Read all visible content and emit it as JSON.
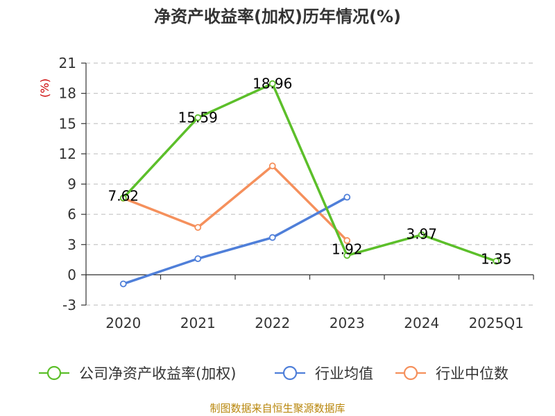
{
  "title": "净资产收益率(加权)历年情况(%)",
  "source": "制图数据来自恒生聚源数据库",
  "chart_data": {
    "type": "line",
    "categories": [
      "2020",
      "2021",
      "2022",
      "2023",
      "2024",
      "2025Q1"
    ],
    "ylabel": "(%)",
    "ylim": [
      -3,
      21
    ],
    "yticks": [
      -3,
      0,
      3,
      6,
      9,
      12,
      15,
      18,
      21
    ],
    "grid": true,
    "legend_position": "bottom",
    "series": [
      {
        "name": "公司净资产收益率(加权)",
        "color": "#5cbf2a",
        "values": [
          7.62,
          15.59,
          18.96,
          1.92,
          3.97,
          1.35
        ],
        "labels": [
          "7.62",
          "15.59",
          "18.96",
          "1.92",
          "3.97",
          "1.35"
        ]
      },
      {
        "name": "行业均值",
        "color": "#4f7fd9",
        "values": [
          -0.9,
          1.6,
          3.7,
          7.7,
          null,
          null
        ]
      },
      {
        "name": "行业中位数",
        "color": "#f5905c",
        "values": [
          7.6,
          4.7,
          10.8,
          3.4,
          null,
          null
        ]
      }
    ]
  }
}
